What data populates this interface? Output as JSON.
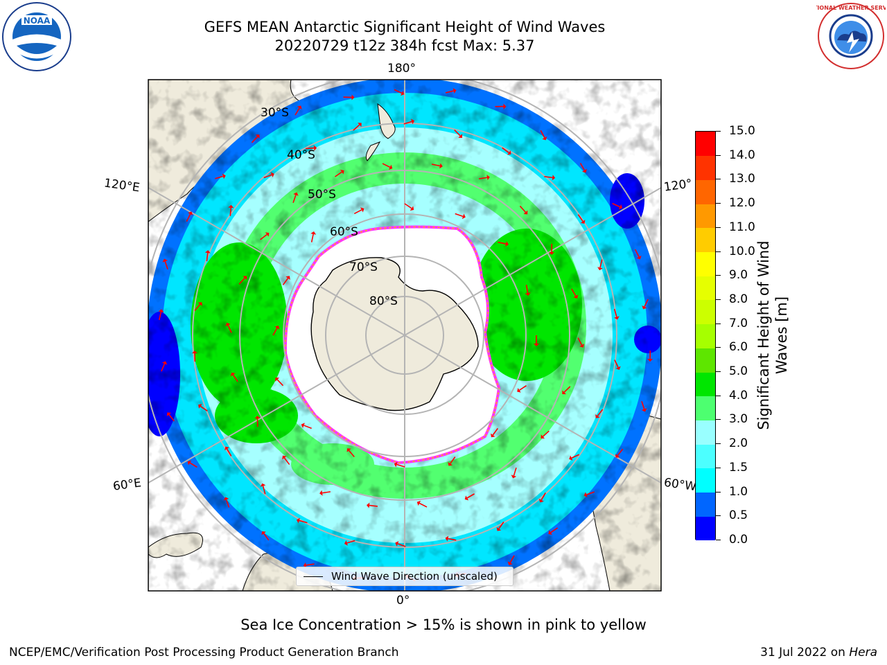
{
  "title": {
    "line1": "GEFS MEAN Antarctic Significant Height of Wind Waves",
    "line2": "20220729 t12z 384h fcst   Max: 5.37"
  },
  "logos": {
    "left": "NOAA",
    "right": "NATIONAL WEATHER SERVICE"
  },
  "map": {
    "projection": "south-polar-stereographic",
    "longitude_labels": {
      "top": "180°",
      "bottom": "0°",
      "upper_left": "120°E",
      "upper_right": "120°",
      "lower_left": "60°E",
      "lower_right": "60°W"
    },
    "latitude_labels": [
      "30°S",
      "40°S",
      "50°S",
      "60°S",
      "70°S",
      "80°S"
    ],
    "legend_label": "Wind Wave Direction (unscaled)",
    "arrow_color": "#ff0000",
    "land_color": "#efebdc",
    "ice_edge_colors": [
      "#ff33ff",
      "#ffbf00"
    ],
    "ocean_colors": [
      "#0000ff",
      "#0072ff",
      "#00e6ff",
      "#42ffff",
      "#a6ffff",
      "#52ff70",
      "#00e600"
    ]
  },
  "colorbar": {
    "title": "Significant Height of Wind Waves [m]",
    "tick_labels": [
      "0.0",
      "0.5",
      "1.0",
      "1.5",
      "2.0",
      "3.0",
      "4.0",
      "5.0",
      "6.0",
      "7.0",
      "8.0",
      "9.0",
      "10.0",
      "11.0",
      "12.0",
      "13.0",
      "14.0",
      "15.0"
    ],
    "colors": [
      "#0000ff",
      "#0066ff",
      "#00ffff",
      "#4cffff",
      "#99ffff",
      "#4dff70",
      "#00e600",
      "#5ee600",
      "#a6ff00",
      "#ccff00",
      "#e6ff00",
      "#ffff00",
      "#ffcc00",
      "#ff9900",
      "#ff6600",
      "#ff3300",
      "#ff0000"
    ]
  },
  "note": "Sea Ice Concentration > 15% is shown in pink to yellow",
  "footer": {
    "left": "NCEP/EMC/Verification Post Processing Product Generation Branch",
    "right_date": "31 Jul 2022 on ",
    "right_machine": "Hera"
  }
}
